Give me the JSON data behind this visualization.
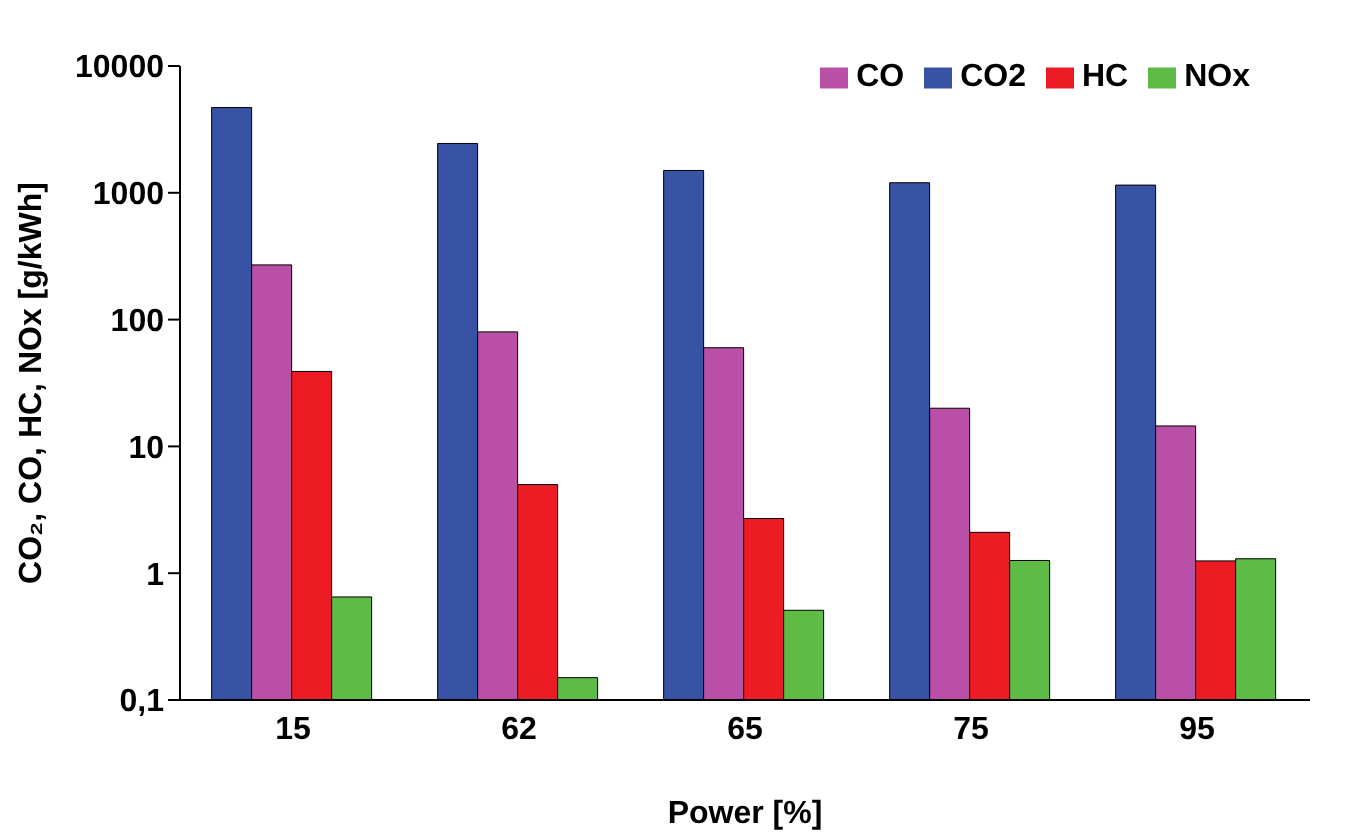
{
  "chart_data": {
    "type": "bar",
    "xlabel": "Power [%]",
    "ylabel": "CO₂, CO, HC, NOx [g/kWh]",
    "categories": [
      "15",
      "62",
      "65",
      "75",
      "95"
    ],
    "series": [
      {
        "name": "CO2",
        "color": "#3953a4",
        "values": [
          4700,
          2450,
          1500,
          1200,
          1150
        ]
      },
      {
        "name": "CO",
        "color": "#b94fa6",
        "values": [
          270,
          80,
          60,
          20,
          14.5
        ]
      },
      {
        "name": "HC",
        "color": "#ed1c24",
        "values": [
          39,
          5,
          2.7,
          2.1,
          1.25
        ]
      },
      {
        "name": "NOx",
        "color": "#5dbb46",
        "values": [
          0.65,
          0.15,
          0.51,
          1.26,
          1.3
        ]
      }
    ],
    "log": "y",
    "ylim": [
      0.1,
      10000
    ],
    "yticks": [
      {
        "value": 0.1,
        "label": "0,1"
      },
      1,
      10,
      100,
      1000,
      10000
    ],
    "legend": "top right"
  }
}
